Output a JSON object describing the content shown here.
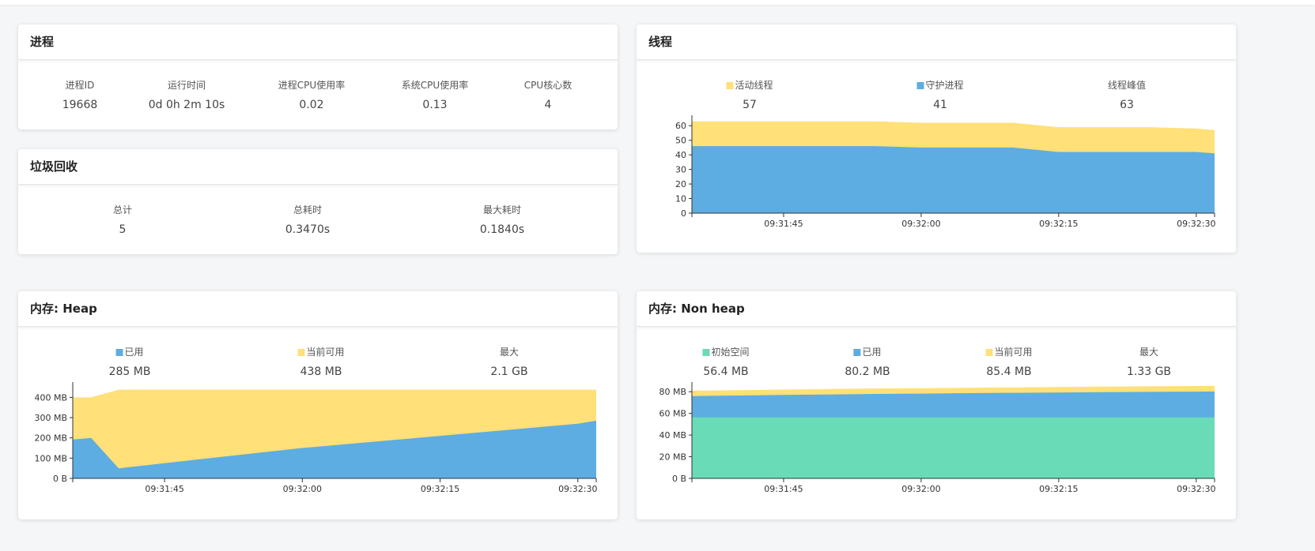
{
  "colors": {
    "active": "#ffe079",
    "daemon": "#5dade2",
    "used": "#5dade2",
    "committed": "#ffe079",
    "init": "#6adbb7"
  },
  "process": {
    "title": "进程",
    "items": [
      {
        "label": "进程ID",
        "value": "19668"
      },
      {
        "label": "运行时间",
        "value": "0d 0h 2m 10s"
      },
      {
        "label": "进程CPU使用率",
        "value": "0.02"
      },
      {
        "label": "系统CPU使用率",
        "value": "0.13"
      },
      {
        "label": "CPU核心数",
        "value": "4"
      }
    ]
  },
  "gc": {
    "title": "垃圾回收",
    "items": [
      {
        "label": "总计",
        "value": "5"
      },
      {
        "label": "总耗时",
        "value": "0.3470s"
      },
      {
        "label": "最大耗时",
        "value": "0.1840s"
      }
    ]
  },
  "threads": {
    "title": "线程",
    "legend": [
      {
        "label": "活动线程",
        "value": "57",
        "color": "#ffe079"
      },
      {
        "label": "守护进程",
        "value": "41",
        "color": "#5dade2"
      },
      {
        "label": "线程峰值",
        "value": "63",
        "color": ""
      }
    ],
    "chart_data": {
      "type": "area",
      "x": [
        "09:31:35",
        "09:31:40",
        "09:31:45",
        "09:31:50",
        "09:31:55",
        "09:32:00",
        "09:32:05",
        "09:32:10",
        "09:32:15",
        "09:32:20",
        "09:32:25",
        "09:32:30",
        "09:32:32"
      ],
      "xticks": [
        "09:31:45",
        "09:32:00",
        "09:32:15",
        "09:32:30"
      ],
      "series": [
        {
          "name": "守护进程",
          "values": [
            46,
            46,
            46,
            46,
            46,
            45,
            45,
            45,
            42,
            42,
            42,
            42,
            41
          ]
        },
        {
          "name": "活动线程",
          "values": [
            63,
            63,
            63,
            63,
            63,
            62,
            62,
            62,
            59,
            59,
            59,
            58,
            57
          ]
        }
      ],
      "ylim": [
        0,
        65
      ],
      "yticks": [
        "0",
        "10",
        "20",
        "30",
        "40",
        "50",
        "60"
      ]
    }
  },
  "heap": {
    "title": "内存: Heap",
    "legend": [
      {
        "label": "已用",
        "value": "285 MB",
        "color": "#5dade2"
      },
      {
        "label": "当前可用",
        "value": "438 MB",
        "color": "#ffe079"
      },
      {
        "label": "最大",
        "value": "2.1 GB",
        "color": ""
      }
    ],
    "chart_data": {
      "type": "area",
      "x": [
        "09:31:35",
        "09:31:37",
        "09:31:40",
        "09:31:45",
        "09:31:50",
        "09:31:55",
        "09:32:00",
        "09:32:05",
        "09:32:10",
        "09:32:15",
        "09:32:20",
        "09:32:25",
        "09:32:30",
        "09:32:32"
      ],
      "xticks": [
        "09:31:45",
        "09:32:00",
        "09:32:15",
        "09:32:30"
      ],
      "series": [
        {
          "name": "已用",
          "values": [
            192,
            200,
            50,
            75,
            100,
            125,
            150,
            170,
            190,
            210,
            230,
            250,
            270,
            285
          ]
        },
        {
          "name": "当前可用",
          "values": [
            400,
            400,
            438,
            438,
            438,
            438,
            438,
            438,
            438,
            438,
            438,
            438,
            438,
            438
          ]
        }
      ],
      "ylim": [
        0,
        460
      ],
      "yticks": [
        "0 B",
        "100 MB",
        "200 MB",
        "300 MB",
        "400 MB"
      ]
    }
  },
  "nonheap": {
    "title": "内存: Non heap",
    "legend": [
      {
        "label": "初始空间",
        "value": "56.4 MB",
        "color": "#6adbb7"
      },
      {
        "label": "已用",
        "value": "80.2 MB",
        "color": "#5dade2"
      },
      {
        "label": "当前可用",
        "value": "85.4 MB",
        "color": "#ffe079"
      },
      {
        "label": "最大",
        "value": "1.33 GB",
        "color": ""
      }
    ],
    "chart_data": {
      "type": "area",
      "x": [
        "09:31:35",
        "09:31:40",
        "09:31:45",
        "09:31:50",
        "09:31:55",
        "09:32:00",
        "09:32:05",
        "09:32:10",
        "09:32:15",
        "09:32:20",
        "09:32:25",
        "09:32:30",
        "09:32:32"
      ],
      "xticks": [
        "09:31:45",
        "09:32:00",
        "09:32:15",
        "09:32:30"
      ],
      "series": [
        {
          "name": "初始空间",
          "values": [
            56.4,
            56.4,
            56.4,
            56.4,
            56.4,
            56.4,
            56.4,
            56.4,
            56.4,
            56.4,
            56.4,
            56.4,
            56.4
          ]
        },
        {
          "name": "已用",
          "values": [
            76,
            76.5,
            77,
            77.5,
            78,
            78.3,
            78.7,
            79,
            79.3,
            79.6,
            79.9,
            80.1,
            80.2
          ]
        },
        {
          "name": "当前可用",
          "values": [
            81,
            81.5,
            82,
            82.5,
            83,
            83.3,
            83.7,
            84,
            84.3,
            84.7,
            85,
            85.3,
            85.4
          ]
        }
      ],
      "ylim": [
        0,
        86
      ],
      "yticks": [
        "0 B",
        "20 MB",
        "40 MB",
        "60 MB",
        "80 MB"
      ]
    }
  }
}
